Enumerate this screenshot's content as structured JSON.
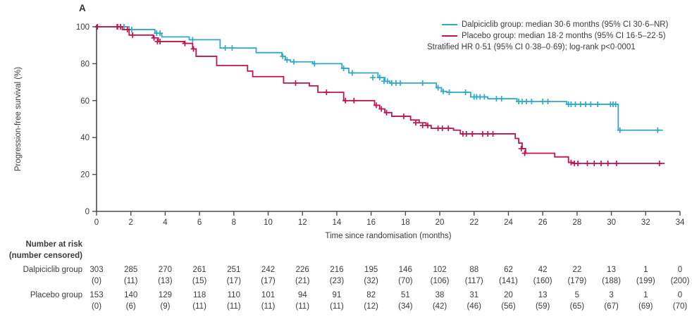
{
  "panel_label": "A",
  "colors": {
    "dalpiciclib": "#2FA9C9",
    "placebo": "#C01351",
    "axis": "#4d4d4d",
    "text": "#3b3b3b"
  },
  "legend": {
    "entries": [
      {
        "label": "Dalpiciclib group: median 30·6 months (95% CI 30·6–NR)",
        "color_key": "dalpiciclib"
      },
      {
        "label": "Placebo group: median 18·2 months (95% CI 16·5–22·5)",
        "color_key": "placebo"
      }
    ],
    "annotation": "Stratified HR 0·51 (95% CI 0·38–0·69); log-rank p<0·0001"
  },
  "chart_data": {
    "type": "line",
    "subtype": "kaplan-meier-step",
    "title": "",
    "xlabel": "Time since randomisation (months)",
    "ylabel": "Progression-free survival (%)",
    "xlim": [
      0,
      34
    ],
    "ylim": [
      0,
      100
    ],
    "x_ticks": [
      0,
      2,
      4,
      6,
      8,
      10,
      12,
      14,
      16,
      18,
      20,
      22,
      24,
      26,
      28,
      30,
      32,
      34
    ],
    "y_ticks": [
      0,
      20,
      40,
      60,
      80,
      100
    ],
    "grid": false,
    "legend_position": "top-right",
    "series": [
      {
        "name": "Dalpiciclib group",
        "color_key": "dalpiciclib",
        "steps": [
          [
            0,
            100
          ],
          [
            1.9,
            98.5
          ],
          [
            3.4,
            96.5
          ],
          [
            3.8,
            94.5
          ],
          [
            5.4,
            93
          ],
          [
            7.2,
            88.5
          ],
          [
            9.3,
            86
          ],
          [
            10.8,
            84
          ],
          [
            11.0,
            82
          ],
          [
            11.3,
            81
          ],
          [
            12.6,
            80
          ],
          [
            14.3,
            77.5
          ],
          [
            14.7,
            75
          ],
          [
            16.4,
            72.5
          ],
          [
            16.8,
            70.5
          ],
          [
            17.1,
            69.5
          ],
          [
            19.8,
            67
          ],
          [
            20.1,
            65
          ],
          [
            20.4,
            64.5
          ],
          [
            21.8,
            62
          ],
          [
            22.8,
            61
          ],
          [
            24.5,
            59.5
          ],
          [
            27.4,
            58
          ],
          [
            30.4,
            44
          ],
          [
            33.0,
            44
          ]
        ],
        "censor_marks": [
          [
            1.25,
            100
          ],
          [
            1.6,
            100
          ],
          [
            2.05,
            98.5
          ],
          [
            3.5,
            96.5
          ],
          [
            3.7,
            96.5
          ],
          [
            5.6,
            93
          ],
          [
            7.5,
            88.5
          ],
          [
            7.9,
            88.5
          ],
          [
            10.85,
            84
          ],
          [
            11.1,
            82
          ],
          [
            11.5,
            81
          ],
          [
            12.7,
            80
          ],
          [
            14.4,
            77.5
          ],
          [
            14.9,
            75
          ],
          [
            16.1,
            72.5
          ],
          [
            16.5,
            72.5
          ],
          [
            16.75,
            70.5
          ],
          [
            16.95,
            70.5
          ],
          [
            17.2,
            69.5
          ],
          [
            17.45,
            69.5
          ],
          [
            17.7,
            69.5
          ],
          [
            19.0,
            69.5
          ],
          [
            19.9,
            67
          ],
          [
            20.2,
            65
          ],
          [
            20.55,
            64.5
          ],
          [
            21.5,
            64.5
          ],
          [
            22.0,
            62
          ],
          [
            22.15,
            62
          ],
          [
            22.35,
            62
          ],
          [
            22.6,
            62
          ],
          [
            23.3,
            61
          ],
          [
            23.6,
            61
          ],
          [
            24.6,
            59.5
          ],
          [
            24.8,
            59.5
          ],
          [
            25.05,
            59.5
          ],
          [
            25.35,
            59.5
          ],
          [
            26.0,
            59.5
          ],
          [
            26.3,
            59.5
          ],
          [
            27.5,
            58
          ],
          [
            27.65,
            58
          ],
          [
            27.9,
            58
          ],
          [
            28.2,
            58
          ],
          [
            28.5,
            58
          ],
          [
            28.8,
            58
          ],
          [
            29.2,
            58
          ],
          [
            29.95,
            58
          ],
          [
            30.1,
            58
          ],
          [
            30.25,
            58
          ],
          [
            30.5,
            44
          ],
          [
            32.7,
            44
          ]
        ]
      },
      {
        "name": "Placebo group",
        "color_key": "placebo",
        "steps": [
          [
            0,
            100
          ],
          [
            1.5,
            98.5
          ],
          [
            1.9,
            95.5
          ],
          [
            3.3,
            94
          ],
          [
            3.6,
            92
          ],
          [
            5.1,
            91
          ],
          [
            5.6,
            88
          ],
          [
            5.8,
            84
          ],
          [
            7.0,
            79
          ],
          [
            8.8,
            76
          ],
          [
            9.1,
            73
          ],
          [
            10.9,
            69.5
          ],
          [
            12.4,
            68
          ],
          [
            12.9,
            64.5
          ],
          [
            14.4,
            60
          ],
          [
            16.2,
            57.5
          ],
          [
            16.5,
            55.5
          ],
          [
            16.8,
            53.5
          ],
          [
            17.2,
            51.5
          ],
          [
            18.3,
            49.5
          ],
          [
            18.8,
            48
          ],
          [
            19.2,
            46.5
          ],
          [
            19.5,
            45
          ],
          [
            20.8,
            44
          ],
          [
            21.2,
            42
          ],
          [
            24.4,
            39.5
          ],
          [
            24.6,
            37
          ],
          [
            24.8,
            34
          ],
          [
            25.0,
            31.5
          ],
          [
            26.7,
            29.5
          ],
          [
            27.5,
            26.5
          ],
          [
            27.8,
            26
          ],
          [
            33.1,
            26
          ]
        ],
        "censor_marks": [
          [
            0.05,
            100
          ],
          [
            1.2,
            100
          ],
          [
            1.4,
            100
          ],
          [
            1.8,
            98.5
          ],
          [
            2.1,
            95.5
          ],
          [
            3.35,
            94
          ],
          [
            3.55,
            92
          ],
          [
            3.7,
            92
          ],
          [
            5.15,
            91
          ],
          [
            5.65,
            88
          ],
          [
            11.6,
            69.5
          ],
          [
            13.4,
            64.5
          ],
          [
            14.5,
            60
          ],
          [
            15.0,
            60
          ],
          [
            16.3,
            57.5
          ],
          [
            16.6,
            55.5
          ],
          [
            16.9,
            53.5
          ],
          [
            17.9,
            51.5
          ],
          [
            18.6,
            48
          ],
          [
            19.0,
            46.5
          ],
          [
            19.3,
            46.5
          ],
          [
            19.9,
            45
          ],
          [
            20.15,
            45
          ],
          [
            20.5,
            45
          ],
          [
            21.35,
            42
          ],
          [
            21.55,
            42
          ],
          [
            21.9,
            42
          ],
          [
            22.5,
            42
          ],
          [
            22.8,
            42
          ],
          [
            23.1,
            42
          ],
          [
            24.75,
            34
          ],
          [
            24.95,
            31.5
          ],
          [
            27.65,
            26.5
          ],
          [
            27.85,
            26
          ],
          [
            28.05,
            26
          ],
          [
            28.6,
            26
          ],
          [
            29.0,
            26
          ],
          [
            29.4,
            26
          ],
          [
            29.8,
            26
          ],
          [
            30.3,
            26
          ],
          [
            32.8,
            26
          ]
        ]
      }
    ]
  },
  "risk_table": {
    "header_line1": "Number at risk",
    "header_line2": "(number censored)",
    "time_points": [
      0,
      2,
      4,
      6,
      8,
      10,
      12,
      14,
      16,
      18,
      20,
      22,
      24,
      26,
      28,
      30,
      32,
      34
    ],
    "rows": [
      {
        "group": "Dalpiciclib group",
        "at_risk": [
          "303",
          "285",
          "270",
          "261",
          "251",
          "242",
          "226",
          "216",
          "195",
          "146",
          "102",
          "88",
          "62",
          "42",
          "22",
          "13",
          "1",
          "0"
        ],
        "censored": [
          "(0)",
          "(11)",
          "(13)",
          "(15)",
          "(17)",
          "(17)",
          "(21)",
          "(23)",
          "(32)",
          "(70)",
          "(106)",
          "(117)",
          "(141)",
          "(160)",
          "(179)",
          "(188)",
          "(199)",
          "(200)"
        ]
      },
      {
        "group": "Placebo group",
        "at_risk": [
          "153",
          "140",
          "129",
          "118",
          "110",
          "101",
          "94",
          "91",
          "82",
          "51",
          "38",
          "31",
          "20",
          "13",
          "5",
          "3",
          "1",
          "0"
        ],
        "censored": [
          "(0)",
          "(6)",
          "(9)",
          "(11)",
          "(11)",
          "(11)",
          "(11)",
          "(11)",
          "(12)",
          "(34)",
          "(42)",
          "(46)",
          "(56)",
          "(59)",
          "(65)",
          "(67)",
          "(69)",
          "(70)"
        ]
      }
    ]
  }
}
